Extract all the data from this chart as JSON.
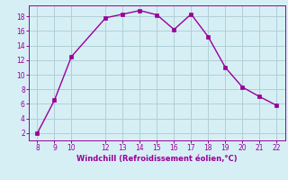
{
  "x": [
    8,
    9,
    10,
    12,
    13,
    14,
    15,
    16,
    17,
    18,
    19,
    20,
    21,
    22
  ],
  "y": [
    2.0,
    6.5,
    12.5,
    17.8,
    18.3,
    18.8,
    18.2,
    16.2,
    18.3,
    15.2,
    11.0,
    8.3,
    7.0,
    5.8
  ],
  "line_color": "#990099",
  "marker": "s",
  "marker_size": 2.5,
  "bg_color": "#d6eff5",
  "grid_color": "#b0cfd8",
  "xlabel": "Windchill (Refroidissement éolien,°C)",
  "xlabel_color": "#990099",
  "tick_color": "#990099",
  "spine_color": "#990099",
  "xlim": [
    7.5,
    22.5
  ],
  "ylim": [
    1.0,
    19.5
  ],
  "xticks": [
    8,
    9,
    10,
    12,
    13,
    14,
    15,
    16,
    17,
    18,
    19,
    20,
    21,
    22
  ],
  "yticks": [
    2,
    4,
    6,
    8,
    10,
    12,
    14,
    16,
    18
  ],
  "tick_labelsize": 5.5,
  "xlabel_fontsize": 6.0
}
